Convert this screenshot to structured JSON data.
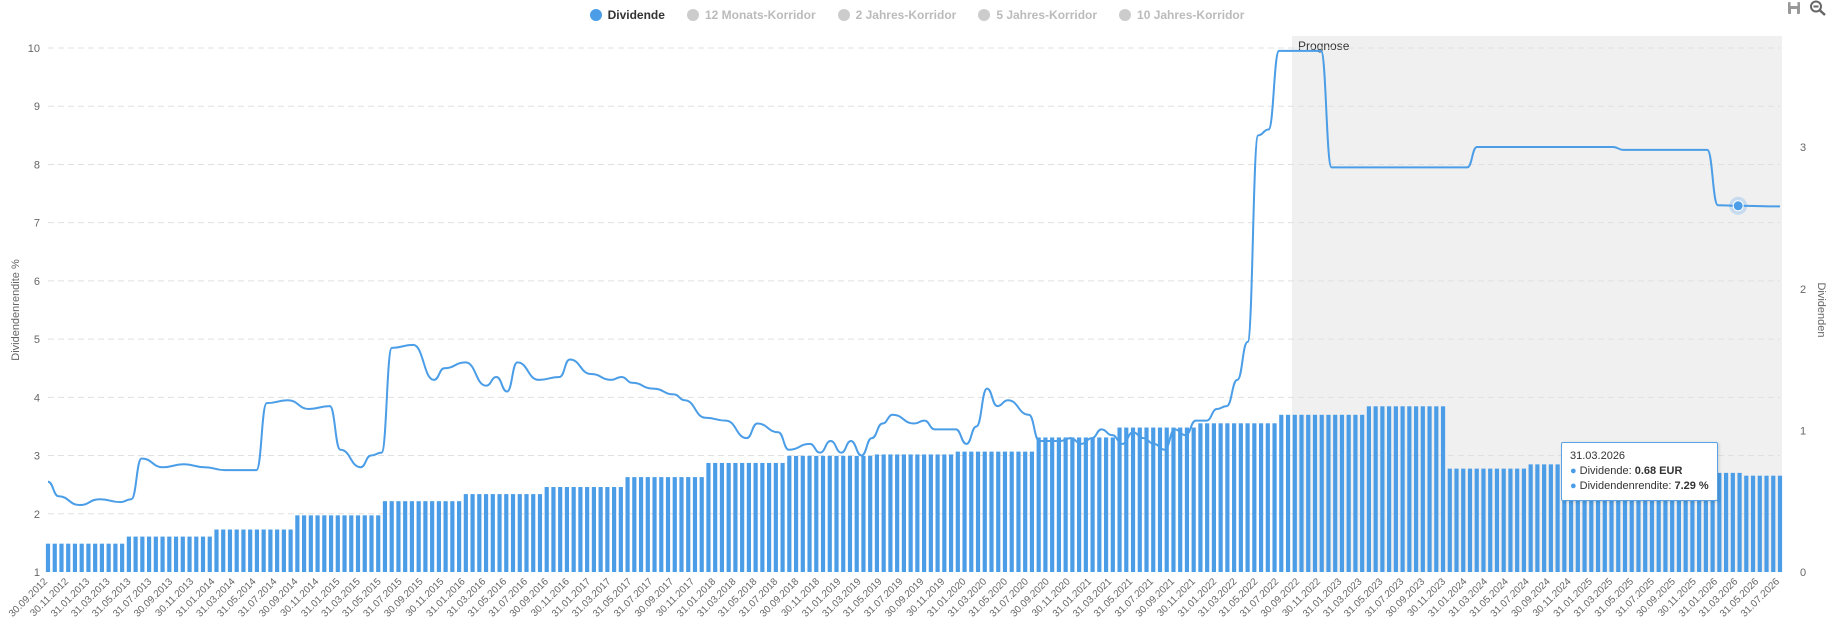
{
  "legend": {
    "items": [
      {
        "label": "Dividende",
        "color": "#4a9de6",
        "active": true
      },
      {
        "label": "12 Monats-Korridor",
        "color": "#cccccc",
        "active": false
      },
      {
        "label": "2 Jahres-Korridor",
        "color": "#cccccc",
        "active": false
      },
      {
        "label": "5 Jahres-Korridor",
        "color": "#cccccc",
        "active": false
      },
      {
        "label": "10 Jahres-Korridor",
        "color": "#cccccc",
        "active": false
      }
    ]
  },
  "toolbar": {
    "icons": [
      "save-icon",
      "zoom-out-icon"
    ]
  },
  "tooltip": {
    "date": "31.03.2026",
    "dividend_label": "Dividende: ",
    "dividend_value": "0.68 EUR",
    "yield_label": "Dividendenrendite: ",
    "yield_value": "7.29 %"
  },
  "chart_data": {
    "type": "bar+line",
    "ylabel_left": "Dividendenrendite %",
    "ylabel_right": "Dividenden",
    "ylim_left": [
      1,
      10
    ],
    "yticks_left": [
      1,
      2,
      3,
      4,
      5,
      6,
      7,
      8,
      9,
      10
    ],
    "ylim_right": [
      0,
      3.7
    ],
    "yticks_right": [
      0,
      1,
      2,
      3
    ],
    "forecast_label": "Prognose",
    "forecast_start": "30.09.2022",
    "grid": true,
    "colors": {
      "bar": "#4a9de6",
      "line": "#4a9de6",
      "forecast_band": "#f0f0f0"
    },
    "dates": [
      "30.09.2012",
      "30.11.2012",
      "31.01.2013",
      "31.03.2013",
      "31.05.2013",
      "31.07.2013",
      "30.09.2013",
      "30.11.2013",
      "31.01.2014",
      "31.03.2014",
      "31.05.2014",
      "31.07.2014",
      "30.09.2014",
      "30.11.2014",
      "31.01.2015",
      "31.03.2015",
      "31.05.2015",
      "31.07.2015",
      "30.09.2015",
      "30.11.2015",
      "31.01.2016",
      "31.03.2016",
      "31.05.2016",
      "31.07.2016",
      "30.09.2016",
      "30.11.2016",
      "31.01.2017",
      "31.03.2017",
      "31.05.2017",
      "31.07.2017",
      "30.09.2017",
      "30.11.2017",
      "31.01.2018",
      "31.03.2018",
      "31.05.2018",
      "31.07.2018",
      "30.09.2018",
      "30.11.2018",
      "31.01.2019",
      "31.03.2019",
      "31.05.2019",
      "31.07.2019",
      "30.09.2019",
      "30.11.2019",
      "31.01.2020",
      "31.03.2020",
      "31.05.2020",
      "31.07.2020",
      "30.09.2020",
      "30.11.2020",
      "31.01.2021",
      "31.03.2021",
      "31.05.2021",
      "31.07.2021",
      "30.09.2021",
      "30.11.2021",
      "31.01.2022",
      "31.03.2022",
      "31.05.2022",
      "31.07.2022",
      "30.09.2022",
      "30.11.2022",
      "31.01.2023",
      "31.03.2023",
      "31.05.2023",
      "31.07.2023",
      "30.09.2023",
      "30.11.2023",
      "31.01.2024",
      "31.03.2024",
      "31.05.2024",
      "31.07.2024",
      "30.09.2024",
      "30.11.2024",
      "31.01.2025",
      "31.03.2025",
      "31.05.2025",
      "31.07.2025",
      "30.09.2025",
      "30.11.2025",
      "31.01.2026",
      "31.03.2026",
      "31.05.2026",
      "31.07.2026"
    ],
    "dividend_groups": [
      {
        "value": 0.2,
        "bars": 12
      },
      {
        "value": 0.25,
        "bars": 13
      },
      {
        "value": 0.3,
        "bars": 12
      },
      {
        "value": 0.4,
        "bars": 13
      },
      {
        "value": 0.5,
        "bars": 12
      },
      {
        "value": 0.55,
        "bars": 12
      },
      {
        "value": 0.6,
        "bars": 12
      },
      {
        "value": 0.67,
        "bars": 12
      },
      {
        "value": 0.77,
        "bars": 12
      },
      {
        "value": 0.82,
        "bars": 13
      },
      {
        "value": 0.83,
        "bars": 12
      },
      {
        "value": 0.85,
        "bars": 12
      },
      {
        "value": 0.95,
        "bars": 12
      },
      {
        "value": 1.02,
        "bars": 12
      },
      {
        "value": 1.05,
        "bars": 12
      },
      {
        "value": 1.11,
        "bars": 13
      },
      {
        "value": 1.17,
        "bars": 12
      },
      {
        "value": 0.73,
        "bars": 12
      },
      {
        "value": 0.76,
        "bars": 13
      },
      {
        "value": 0.74,
        "bars": 12
      },
      {
        "value": 0.7,
        "bars": 7
      },
      {
        "value": 0.68,
        "bars": 6
      }
    ],
    "yield_points": [
      [
        "30.09.2012",
        2.55
      ],
      [
        "31.10.2012",
        2.3
      ],
      [
        "31.12.2012",
        2.15
      ],
      [
        "28.02.2013",
        2.25
      ],
      [
        "30.04.2013",
        2.2
      ],
      [
        "31.05.2013",
        2.25
      ],
      [
        "30.06.2013",
        2.95
      ],
      [
        "31.08.2013",
        2.8
      ],
      [
        "31.10.2013",
        2.85
      ],
      [
        "31.12.2013",
        2.8
      ],
      [
        "28.02.2014",
        2.75
      ],
      [
        "30.04.2014",
        2.75
      ],
      [
        "31.05.2014",
        2.75
      ],
      [
        "30.06.2014",
        3.9
      ],
      [
        "31.08.2014",
        3.95
      ],
      [
        "31.10.2014",
        3.8
      ],
      [
        "31.12.2014",
        3.85
      ],
      [
        "31.01.2015",
        3.1
      ],
      [
        "31.03.2015",
        2.8
      ],
      [
        "30.04.2015",
        3.0
      ],
      [
        "31.05.2015",
        3.05
      ],
      [
        "30.06.2015",
        4.85
      ],
      [
        "31.08.2015",
        4.9
      ],
      [
        "31.10.2015",
        4.3
      ],
      [
        "30.11.2015",
        4.5
      ],
      [
        "31.01.2016",
        4.6
      ],
      [
        "31.03.2016",
        4.2
      ],
      [
        "30.04.2016",
        4.35
      ],
      [
        "31.05.2016",
        4.1
      ],
      [
        "30.06.2016",
        4.6
      ],
      [
        "31.08.2016",
        4.3
      ],
      [
        "31.10.2016",
        4.35
      ],
      [
        "30.11.2016",
        4.65
      ],
      [
        "31.01.2017",
        4.4
      ],
      [
        "31.03.2017",
        4.3
      ],
      [
        "30.04.2017",
        4.35
      ],
      [
        "31.05.2017",
        4.25
      ],
      [
        "31.07.2017",
        4.15
      ],
      [
        "30.09.2017",
        4.05
      ],
      [
        "31.10.2017",
        3.95
      ],
      [
        "31.12.2017",
        3.65
      ],
      [
        "28.02.2018",
        3.6
      ],
      [
        "30.04.2018",
        3.3
      ],
      [
        "31.05.2018",
        3.55
      ],
      [
        "31.07.2018",
        3.4
      ],
      [
        "31.08.2018",
        3.1
      ],
      [
        "31.10.2018",
        3.2
      ],
      [
        "30.11.2018",
        3.05
      ],
      [
        "31.12.2018",
        3.25
      ],
      [
        "31.01.2019",
        3.05
      ],
      [
        "28.02.2019",
        3.25
      ],
      [
        "31.03.2019",
        3.0
      ],
      [
        "30.04.2019",
        3.3
      ],
      [
        "31.05.2019",
        3.55
      ],
      [
        "30.06.2019",
        3.7
      ],
      [
        "31.08.2019",
        3.55
      ],
      [
        "30.09.2019",
        3.6
      ],
      [
        "31.10.2019",
        3.45
      ],
      [
        "31.12.2019",
        3.45
      ],
      [
        "31.01.2020",
        3.2
      ],
      [
        "29.02.2020",
        3.5
      ],
      [
        "31.03.2020",
        4.15
      ],
      [
        "30.04.2020",
        3.85
      ],
      [
        "31.05.2020",
        3.95
      ],
      [
        "31.07.2020",
        3.7
      ],
      [
        "31.08.2020",
        3.25
      ],
      [
        "31.10.2020",
        3.25
      ],
      [
        "30.11.2020",
        3.3
      ],
      [
        "31.12.2020",
        3.2
      ],
      [
        "31.01.2021",
        3.3
      ],
      [
        "28.02.2021",
        3.45
      ],
      [
        "31.03.2021",
        3.35
      ],
      [
        "30.04.2021",
        3.2
      ],
      [
        "31.05.2021",
        3.4
      ],
      [
        "30.06.2021",
        3.3
      ],
      [
        "31.07.2021",
        3.2
      ],
      [
        "31.08.2021",
        3.1
      ],
      [
        "30.09.2021",
        3.45
      ],
      [
        "31.10.2021",
        3.35
      ],
      [
        "30.11.2021",
        3.6
      ],
      [
        "31.12.2021",
        3.6
      ],
      [
        "31.01.2022",
        3.8
      ],
      [
        "28.02.2022",
        3.85
      ],
      [
        "31.03.2022",
        4.3
      ],
      [
        "30.04.2022",
        4.95
      ],
      [
        "31.05.2022",
        8.5
      ],
      [
        "30.06.2022",
        8.6
      ],
      [
        "31.07.2022",
        9.95
      ],
      [
        "31.08.2022",
        9.95
      ],
      [
        "30.09.2022",
        9.95
      ],
      [
        "31.10.2022",
        9.95
      ],
      [
        "30.11.2022",
        9.95
      ],
      [
        "31.12.2022",
        7.95
      ],
      [
        "31.01.2024",
        7.95
      ],
      [
        "28.02.2024",
        8.3
      ],
      [
        "31.03.2025",
        8.3
      ],
      [
        "30.04.2025",
        8.25
      ],
      [
        "31.12.2025",
        8.25
      ],
      [
        "31.01.2026",
        7.3
      ],
      [
        "31.03.2026",
        7.29
      ],
      [
        "31.07.2026",
        7.28
      ]
    ],
    "highlight_point": {
      "date": "31.03.2026",
      "yield": 7.29,
      "dividend": 0.68
    }
  }
}
